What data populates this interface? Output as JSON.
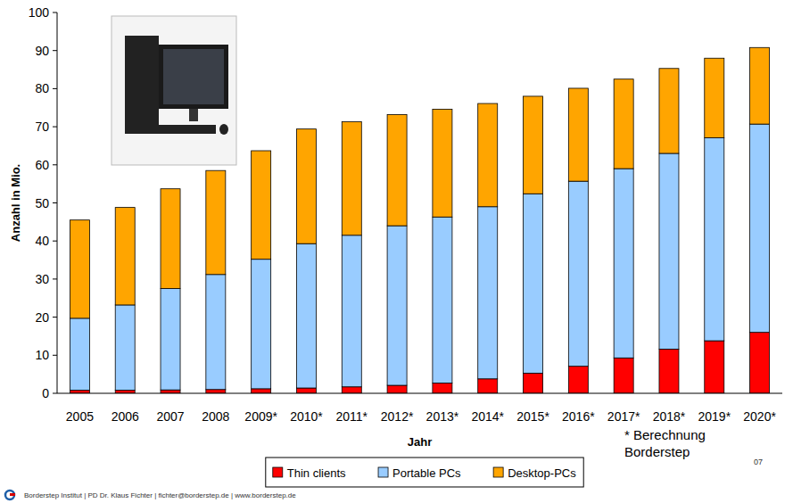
{
  "chart_data": {
    "type": "bar",
    "stacked": true,
    "grid": false,
    "legend": "bottom",
    "x_label": "Jahr",
    "y_label": "Anzahl in Mio.",
    "categories": [
      "2005",
      "2006",
      "2007",
      "2008",
      "2009*",
      "2010*",
      "2011*",
      "2012*",
      "2013*",
      "2014*",
      "2015*",
      "2016*",
      "2017*",
      "2018*",
      "2019*",
      "2020*"
    ],
    "series": [
      {
        "name": "Thin clients",
        "color": "#ff0000",
        "values": [
          0.8,
          0.8,
          0.9,
          1.0,
          1.2,
          1.4,
          1.7,
          2.1,
          2.7,
          3.8,
          5.3,
          7.1,
          9.3,
          11.6,
          13.8,
          16.0
        ]
      },
      {
        "name": "Portable PCs",
        "color": "#99ccff",
        "values": [
          18.9,
          22.4,
          26.6,
          30.2,
          34.0,
          37.9,
          39.8,
          41.9,
          43.6,
          45.2,
          47.1,
          48.6,
          49.7,
          51.4,
          53.3,
          54.7
        ]
      },
      {
        "name": "Desktop-PCs",
        "color": "#ffa500",
        "values": [
          25.8,
          25.6,
          26.2,
          27.3,
          28.5,
          30.1,
          29.8,
          29.2,
          28.3,
          27.1,
          25.6,
          24.4,
          23.5,
          22.3,
          20.9,
          20.1
        ]
      }
    ],
    "ylim": [
      0,
      100
    ],
    "yticks": [
      0,
      10,
      20,
      30,
      40,
      50,
      60,
      70,
      80,
      90,
      100
    ],
    "annotations": [
      "* Berechnung Borderstep"
    ],
    "footer": "Borderstep Institut | PD Dr. Klaus Fichter | fichter@borderstep.de | www.borderstep.de",
    "page_number": "07"
  }
}
